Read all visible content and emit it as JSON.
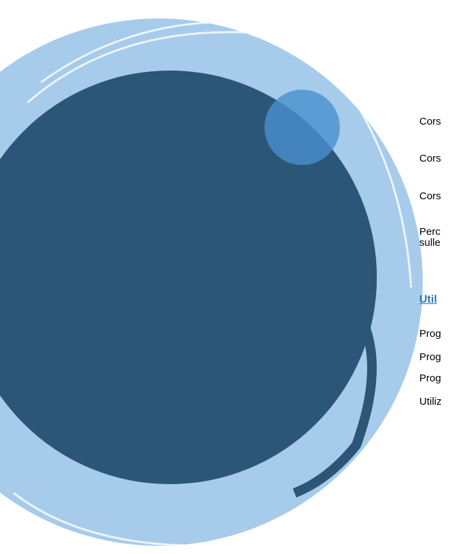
{
  "items": [
    "Cors",
    "Cors",
    "Cors",
    "Perc",
    "sulle"
  ],
  "section": {
    "heading": "Util",
    "items": [
      "Prog",
      "Prog",
      "Prog",
      "Utiliz"
    ]
  }
}
